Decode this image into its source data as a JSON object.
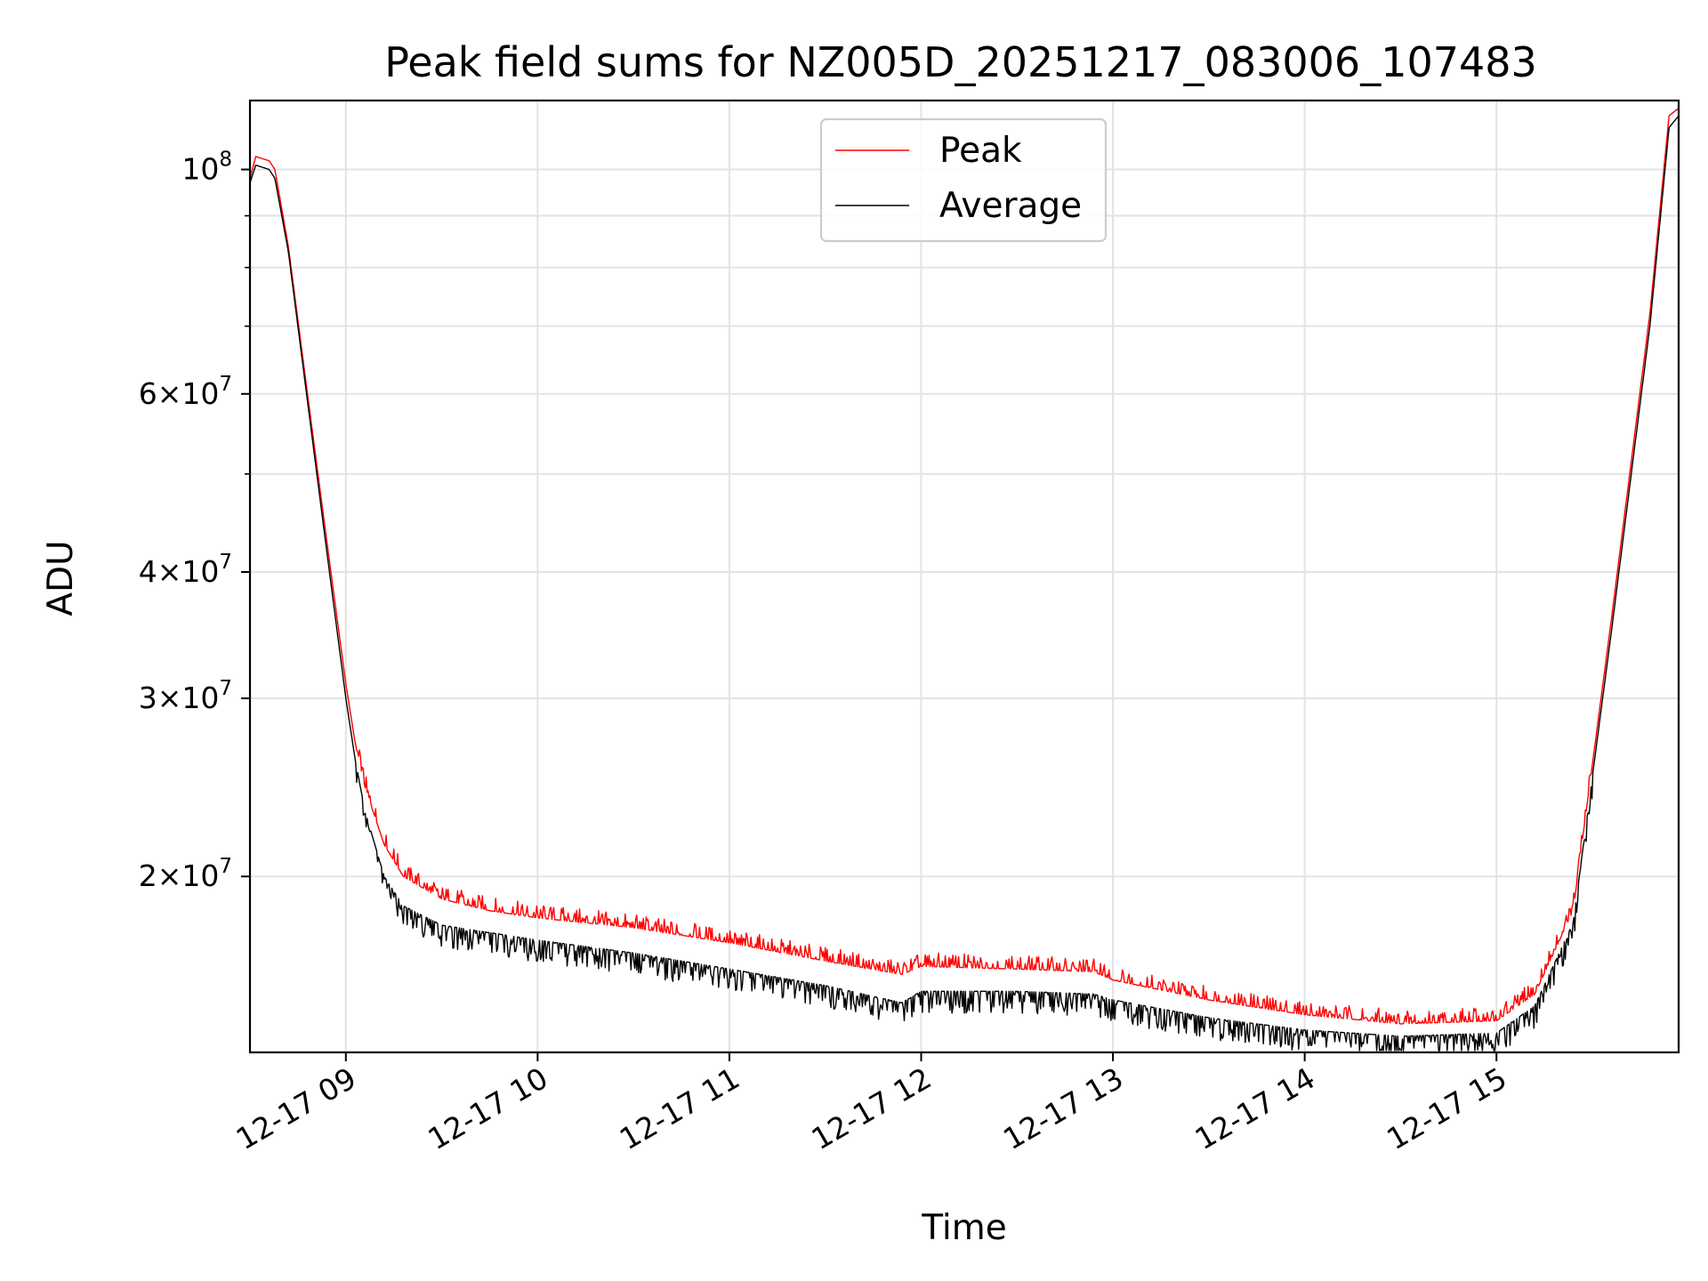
{
  "chart_data": {
    "type": "line",
    "title": "Peak field sums for NZ005D_20251217_083006_107483",
    "xlabel": "Time",
    "ylabel": "ADU",
    "yscale": "log",
    "grid": true,
    "legend_position": "upper center",
    "xlim_hours": [
      8.5,
      15.95
    ],
    "ylim": [
      13400000,
      117000000
    ],
    "x_ticks": [
      {
        "hour": 9,
        "label": "12-17 09"
      },
      {
        "hour": 10,
        "label": "12-17 10"
      },
      {
        "hour": 11,
        "label": "12-17 11"
      },
      {
        "hour": 12,
        "label": "12-17 12"
      },
      {
        "hour": 13,
        "label": "12-17 13"
      },
      {
        "hour": 14,
        "label": "12-17 14"
      },
      {
        "hour": 15,
        "label": "12-17 15"
      }
    ],
    "y_major_ticks": [
      {
        "value": 100000000,
        "mant": "",
        "exp": "8"
      },
      {
        "value": 60000000,
        "mant": "6",
        "exp": "7"
      },
      {
        "value": 40000000,
        "mant": "4",
        "exp": "7"
      },
      {
        "value": 30000000,
        "mant": "3",
        "exp": "7"
      },
      {
        "value": 20000000,
        "mant": "2",
        "exp": "7"
      }
    ],
    "y_minor_ticks": [
      90000000,
      80000000,
      70000000,
      50000000
    ],
    "series": [
      {
        "name": "Peak",
        "color": "#ff0000",
        "x_hours": [
          8.5,
          8.53,
          8.6,
          8.63,
          8.7,
          8.8,
          8.9,
          9.0,
          9.05,
          9.1,
          9.2,
          9.3,
          9.5,
          9.75,
          10.0,
          10.5,
          11.0,
          11.5,
          11.9,
          12.0,
          12.5,
          12.9,
          13.0,
          13.5,
          14.0,
          14.5,
          15.0,
          15.2,
          15.4,
          15.6,
          15.8,
          15.9,
          15.95
        ],
        "values": [
          98000000,
          103000000,
          102000000,
          100000000,
          84000000,
          60000000,
          43000000,
          31000000,
          27000000,
          24500000,
          21500000,
          20000000,
          19000000,
          18500000,
          18200000,
          17800000,
          17200000,
          16500000,
          16000000,
          16300000,
          16200000,
          16100000,
          15800000,
          15100000,
          14600000,
          14300000,
          14400000,
          15300000,
          18500000,
          36000000,
          72000000,
          113000000,
          115000000
        ]
      },
      {
        "name": "Average",
        "color": "#000000",
        "x_hours": [
          8.5,
          8.53,
          8.6,
          8.63,
          8.7,
          8.8,
          8.9,
          9.0,
          9.05,
          9.1,
          9.2,
          9.3,
          9.5,
          9.75,
          10.0,
          10.5,
          11.0,
          11.5,
          11.9,
          12.0,
          12.5,
          12.9,
          13.0,
          13.5,
          14.0,
          14.5,
          15.0,
          15.2,
          15.4,
          15.6,
          15.8,
          15.9,
          15.95
        ],
        "values": [
          97000000,
          101000000,
          100000000,
          98000000,
          83000000,
          59000000,
          42000000,
          30000000,
          26000000,
          23200000,
          20000000,
          18700000,
          17900000,
          17600000,
          17300000,
          16800000,
          16200000,
          15600000,
          15000000,
          15400000,
          15400000,
          15300000,
          15100000,
          14500000,
          14100000,
          13900000,
          14000000,
          14900000,
          18000000,
          35000000,
          70000000,
          110000000,
          113000000
        ]
      }
    ]
  }
}
